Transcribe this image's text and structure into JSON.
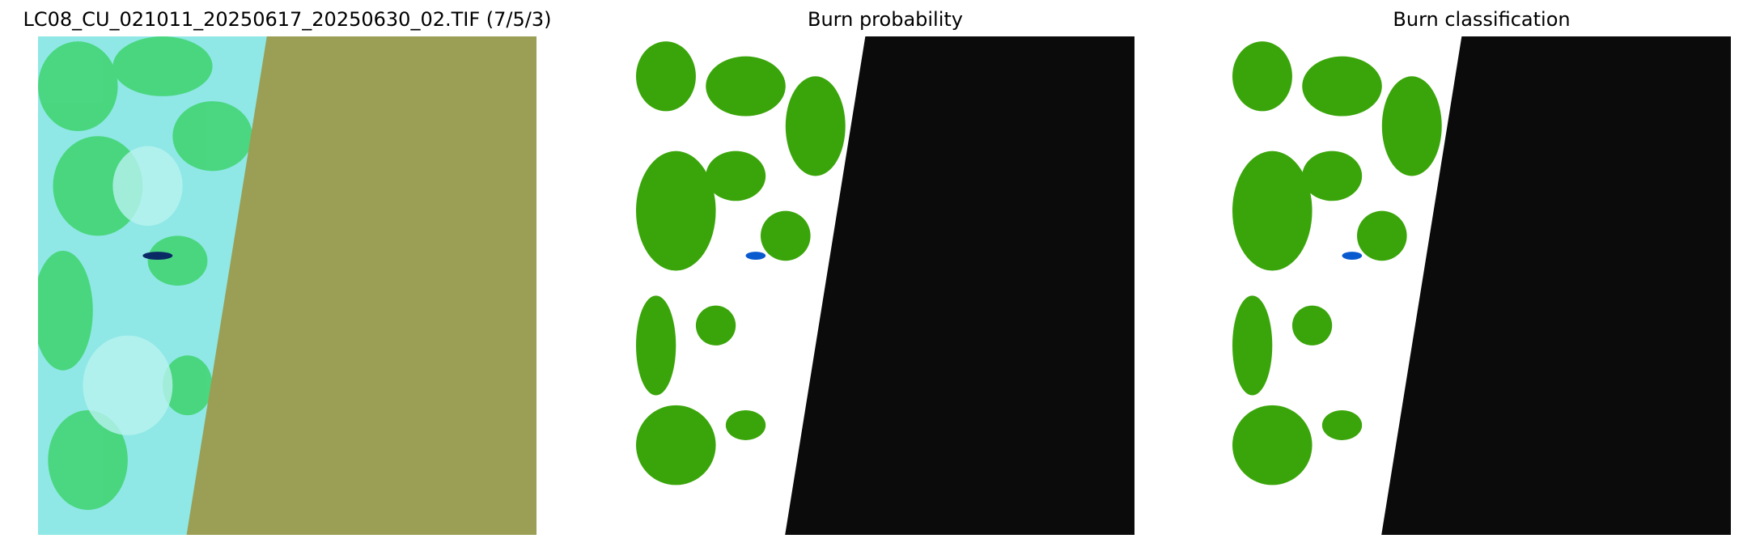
{
  "panels": [
    {
      "title": "LC08_CU_021011_20250617_20250630_02.TIF (7/5/3)"
    },
    {
      "title": "Burn probability"
    },
    {
      "title": "Burn classification"
    }
  ]
}
